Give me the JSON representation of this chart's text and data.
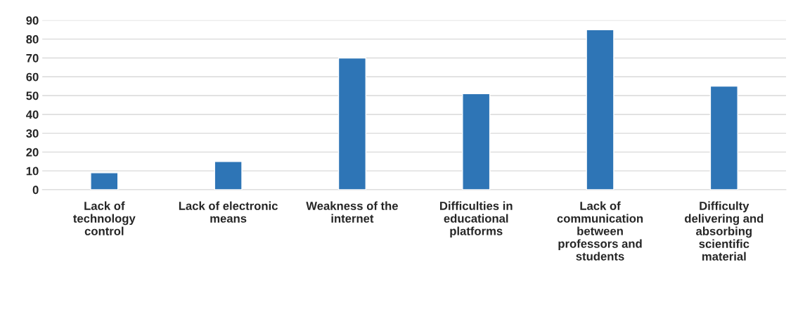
{
  "chart_data": {
    "type": "bar",
    "categories": [
      "Lack of\ntechnology\ncontrol",
      "Lack of electronic\nmeans",
      "Weakness of the\ninternet",
      "Difficulties in\neducational\nplatforms",
      "Lack of\ncommunication\nbetween\nprofessors and\nstudents",
      "Difficulty\ndelivering and\nabsorbing\nscientific\nmaterial"
    ],
    "values": [
      9,
      15,
      70,
      51,
      85,
      55
    ],
    "color": "#2e75b6",
    "ylim": [
      0,
      90
    ],
    "yticks": [
      0,
      10,
      20,
      30,
      40,
      50,
      60,
      70,
      80,
      90
    ],
    "grid": "y",
    "legend": false
  }
}
